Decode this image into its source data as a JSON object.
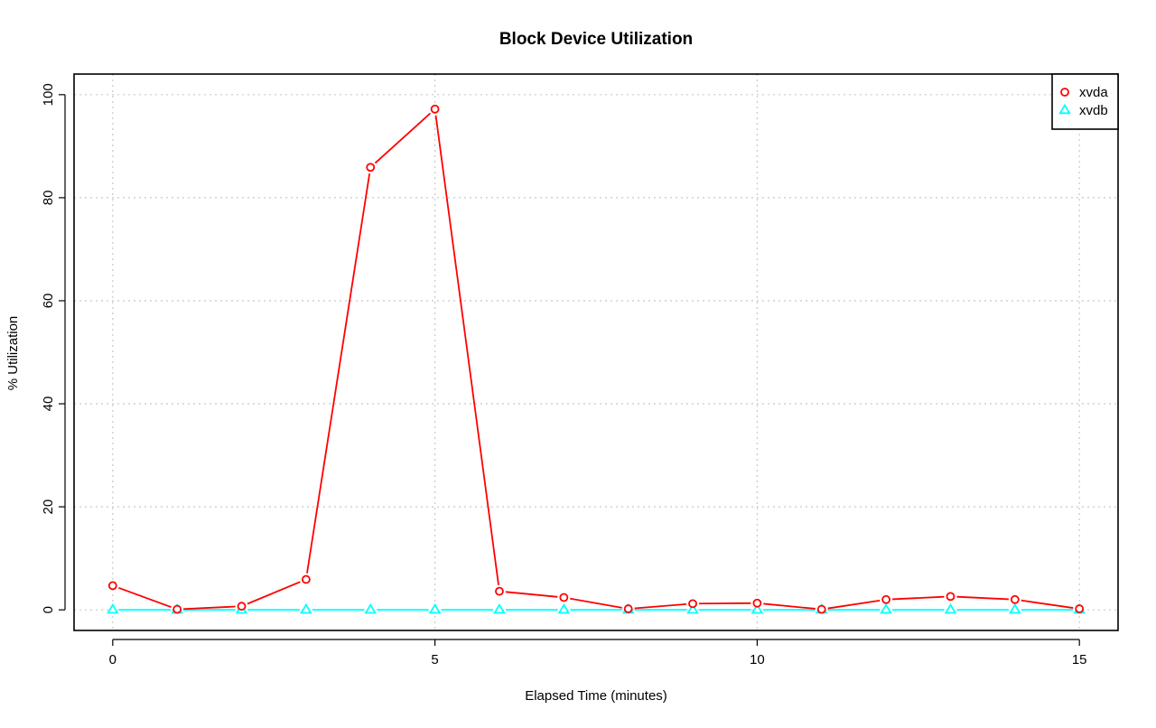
{
  "chart_data": {
    "type": "line",
    "title": "Block Device Utilization",
    "xlabel": "Elapsed Time (minutes)",
    "ylabel": "% Utilization",
    "x": [
      0,
      1,
      2,
      3,
      4,
      5,
      6,
      7,
      8,
      9,
      10,
      11,
      12,
      13,
      14,
      15
    ],
    "xlim": [
      -0.6,
      15.6
    ],
    "ylim": [
      -4,
      104
    ],
    "xticks": [
      0,
      5,
      10,
      15
    ],
    "yticks": [
      0,
      20,
      40,
      60,
      80,
      100
    ],
    "grid": true,
    "legend_position": "top-right",
    "series": [
      {
        "name": "xvda",
        "color": "#ff0000",
        "marker": "circle",
        "values": [
          4.7,
          0.1,
          0.7,
          5.9,
          85.9,
          97.2,
          3.6,
          2.4,
          0.2,
          1.2,
          1.3,
          0.1,
          2.0,
          2.6,
          2.0,
          0.2
        ]
      },
      {
        "name": "xvdb",
        "color": "#00ffff",
        "marker": "triangle",
        "values": [
          0,
          0,
          0,
          0,
          0,
          0,
          0,
          0,
          0,
          0,
          0,
          0,
          0,
          0,
          0,
          0
        ]
      }
    ]
  }
}
